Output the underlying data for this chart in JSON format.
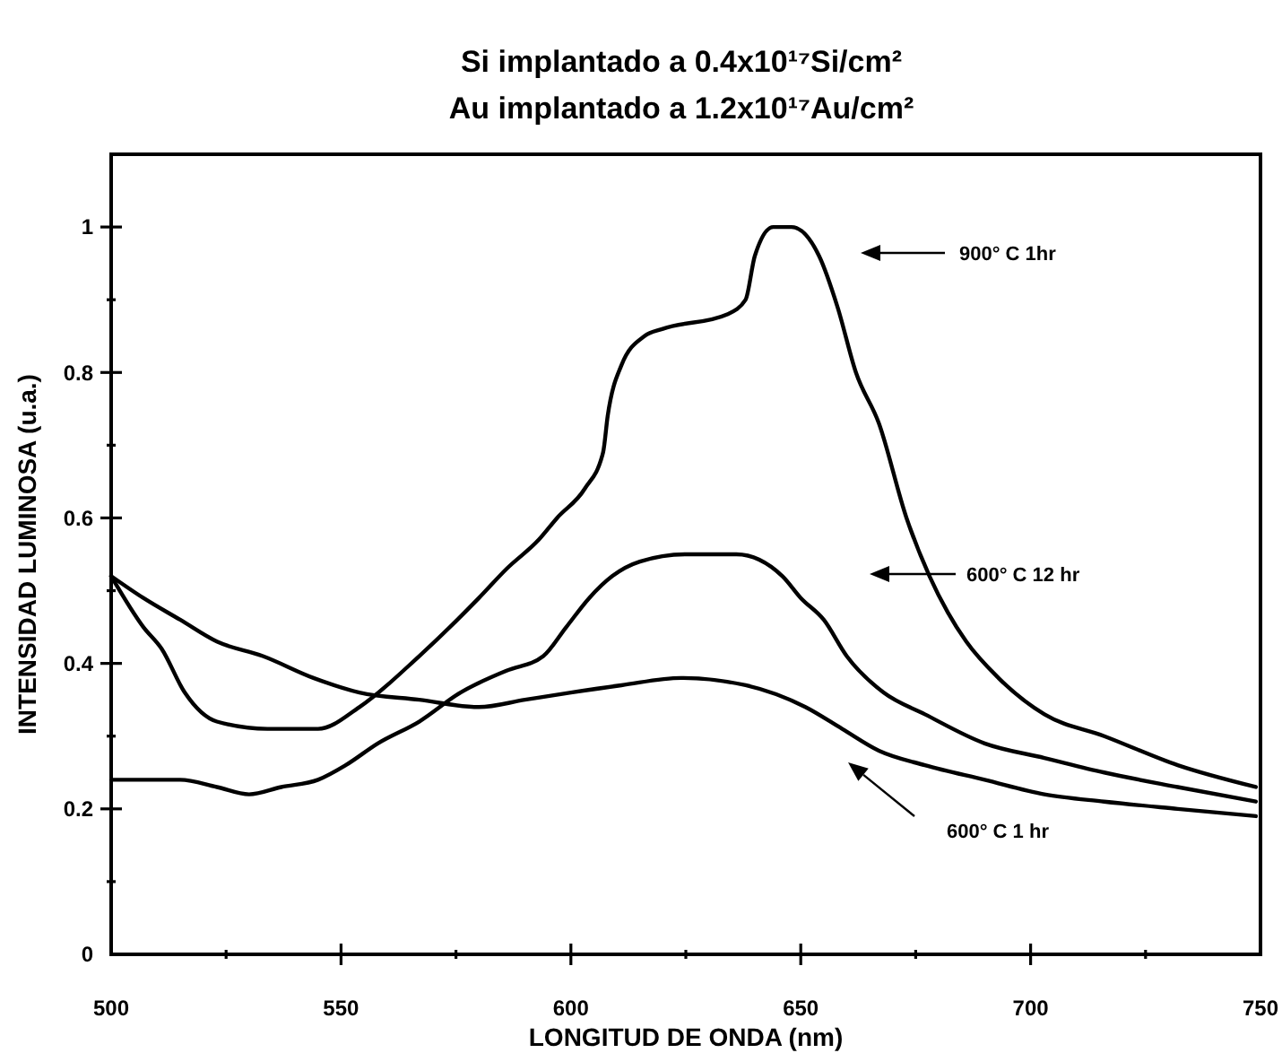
{
  "chart_data": {
    "type": "line",
    "title": "Si implantado a 0.4x10¹⁷Si/cm²",
    "subtitle": "Au implantado a 1.2x10¹⁷Au/cm²",
    "xlabel": "LONGITUD DE ONDA (nm)",
    "ylabel": "INTENSIDAD LUMINOSA (u.a.)",
    "xlim": [
      500,
      750
    ],
    "xticks": [
      500,
      {
        "value": 525,
        "label": null
      },
      550,
      {
        "value": 575,
        "label": null
      },
      600,
      {
        "value": 625,
        "label": null
      },
      650,
      {
        "value": 675,
        "label": null
      },
      700,
      {
        "value": 725,
        "label": null
      },
      750
    ],
    "ylim": [
      0,
      1.1
    ],
    "yticks": [
      0,
      {
        "value": 0.1,
        "label": null
      },
      0.2,
      {
        "value": 0.3,
        "label": null
      },
      0.4,
      {
        "value": 0.5,
        "label": null
      },
      0.6,
      {
        "value": 0.7,
        "label": null
      },
      0.8,
      {
        "value": 0.9,
        "label": null
      },
      1
    ],
    "series": [
      {
        "color": "#000000",
        "x": [
          500,
          507,
          511,
          516,
          523,
          534,
          545,
          554,
          567,
          580,
          586,
          593,
          597,
          603,
          607,
          608,
          611,
          616,
          620,
          634,
          638,
          640,
          644,
          648,
          654,
          658,
          662,
          667,
          673,
          678,
          682,
          686,
          693,
          703,
          716,
          732,
          749
        ],
        "values": [
          0.52,
          0.45,
          0.42,
          0.36,
          0.32,
          0.31,
          0.31,
          0.34,
          0.41,
          0.49,
          0.53,
          0.57,
          0.6,
          0.64,
          0.69,
          0.74,
          0.81,
          0.85,
          0.86,
          0.88,
          0.9,
          0.96,
          1.0,
          1.0,
          0.96,
          0.89,
          0.8,
          0.73,
          0.6,
          0.52,
          0.47,
          0.43,
          0.38,
          0.33,
          0.3,
          0.26,
          0.23
        ]
      },
      {
        "color": "#000000",
        "x": [
          500,
          507,
          515,
          523,
          530,
          537,
          545,
          551,
          558,
          567,
          576,
          586,
          594,
          599,
          604,
          609,
          615,
          625,
          636,
          646,
          650,
          655,
          660,
          668,
          677,
          690,
          703,
          716,
          732,
          749
        ],
        "values": [
          0.24,
          0.24,
          0.24,
          0.23,
          0.22,
          0.23,
          0.24,
          0.26,
          0.29,
          0.32,
          0.36,
          0.39,
          0.41,
          0.45,
          0.49,
          0.52,
          0.54,
          0.55,
          0.55,
          0.52,
          0.49,
          0.46,
          0.41,
          0.36,
          0.33,
          0.29,
          0.27,
          0.25,
          0.23,
          0.21
        ]
      },
      {
        "color": "#000000",
        "x": [
          500,
          507,
          515,
          523,
          533,
          544,
          554,
          567,
          580,
          590,
          600,
          611,
          624,
          638,
          651,
          659,
          667,
          677,
          690,
          703,
          716,
          732,
          749
        ],
        "values": [
          0.52,
          0.49,
          0.46,
          0.43,
          0.41,
          0.38,
          0.36,
          0.35,
          0.34,
          0.35,
          0.36,
          0.37,
          0.38,
          0.37,
          0.34,
          0.31,
          0.28,
          0.26,
          0.24,
          0.22,
          0.21,
          0.2,
          0.19
        ]
      }
    ],
    "annotations": [
      "900° C 1hr",
      "600° C 12 hr",
      "600° C 1 hr"
    ]
  }
}
